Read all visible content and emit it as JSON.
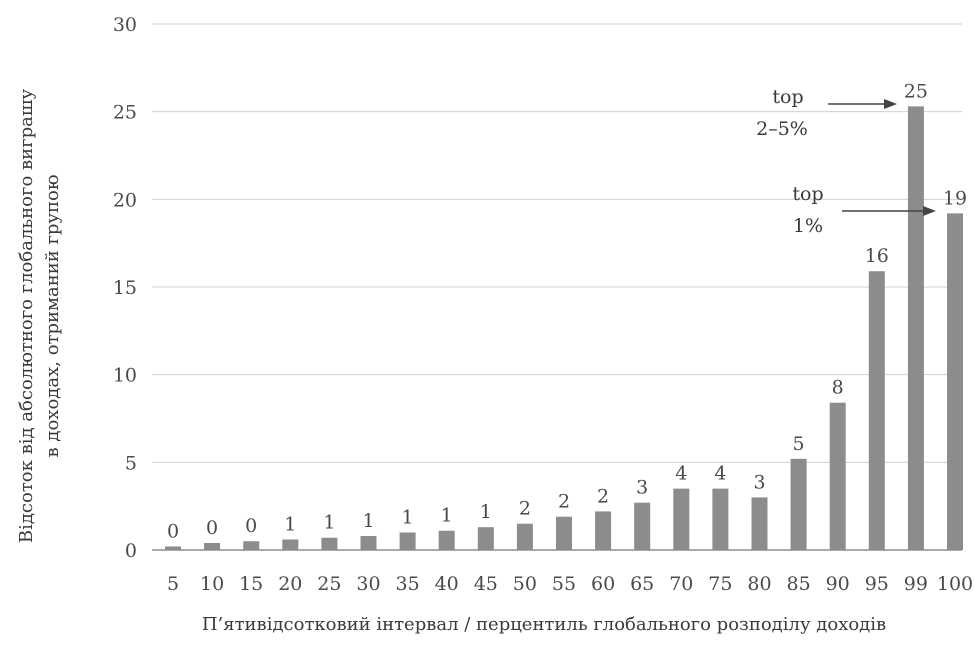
{
  "chart_data": {
    "type": "bar",
    "categories": [
      "5",
      "10",
      "15",
      "20",
      "25",
      "30",
      "35",
      "40",
      "45",
      "50",
      "55",
      "60",
      "65",
      "70",
      "75",
      "80",
      "85",
      "90",
      "95",
      "99",
      "100"
    ],
    "values": [
      0.2,
      0.4,
      0.5,
      0.6,
      0.7,
      0.8,
      1.0,
      1.1,
      1.3,
      1.5,
      1.9,
      2.2,
      2.7,
      3.5,
      3.5,
      3.0,
      5.2,
      8.4,
      15.9,
      25.3,
      19.2
    ],
    "data_labels": [
      "0",
      "0",
      "0",
      "1",
      "1",
      "1",
      "1",
      "1",
      "1",
      "2",
      "2",
      "2",
      "3",
      "4",
      "4",
      "3",
      "5",
      "8",
      "16",
      "25",
      "19"
    ],
    "ylim": [
      0,
      30
    ],
    "yticks": [
      "0",
      "5",
      "10",
      "15",
      "20",
      "25",
      "30"
    ],
    "xlabel": "П’ятивідсотковий  інтервал / перцентиль глобального розподілу доходів",
    "ylabel_lines": [
      "Відсоток від абсолютного глобального виграшу",
      "в доходах, отриманий групою"
    ],
    "grid": true,
    "bar_color": "#8c8c8c",
    "annotations": [
      {
        "lines": [
          "top",
          "2–5%"
        ],
        "target_category": "99"
      },
      {
        "lines": [
          "top",
          "1%"
        ],
        "target_category": "100"
      }
    ]
  }
}
